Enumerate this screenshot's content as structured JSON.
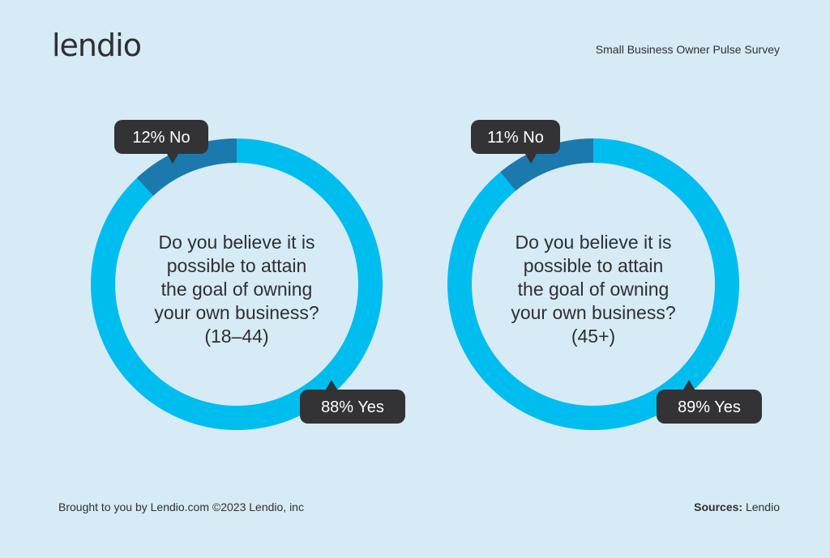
{
  "brand": {
    "logo_text": "lendio"
  },
  "header": {
    "survey_title": "Small Business Owner Pulse Survey"
  },
  "colors": {
    "yes": "#00bdef",
    "no": "#1c79ad",
    "bubble": "#333335",
    "text": "#2f2f33"
  },
  "chart_data": [
    {
      "type": "pie",
      "title_lines": [
        "Do you believe it is",
        "possible to attain",
        "the goal of owning",
        "your own business?",
        "(18–44)"
      ],
      "categories": [
        "No",
        "Yes"
      ],
      "values": [
        12,
        88
      ],
      "labels": [
        "12% No",
        "88% Yes"
      ]
    },
    {
      "type": "pie",
      "title_lines": [
        "Do you believe it is",
        "possible to attain",
        "the goal of owning",
        "your own business?",
        "(45+)"
      ],
      "categories": [
        "No",
        "Yes"
      ],
      "values": [
        11,
        89
      ],
      "labels": [
        "11% No",
        "89% Yes"
      ]
    }
  ],
  "footer": {
    "credit": "Brought to you by Lendio.com ©2023 Lendio, inc",
    "sources_label": "Sources:",
    "sources_value": "Lendio"
  }
}
